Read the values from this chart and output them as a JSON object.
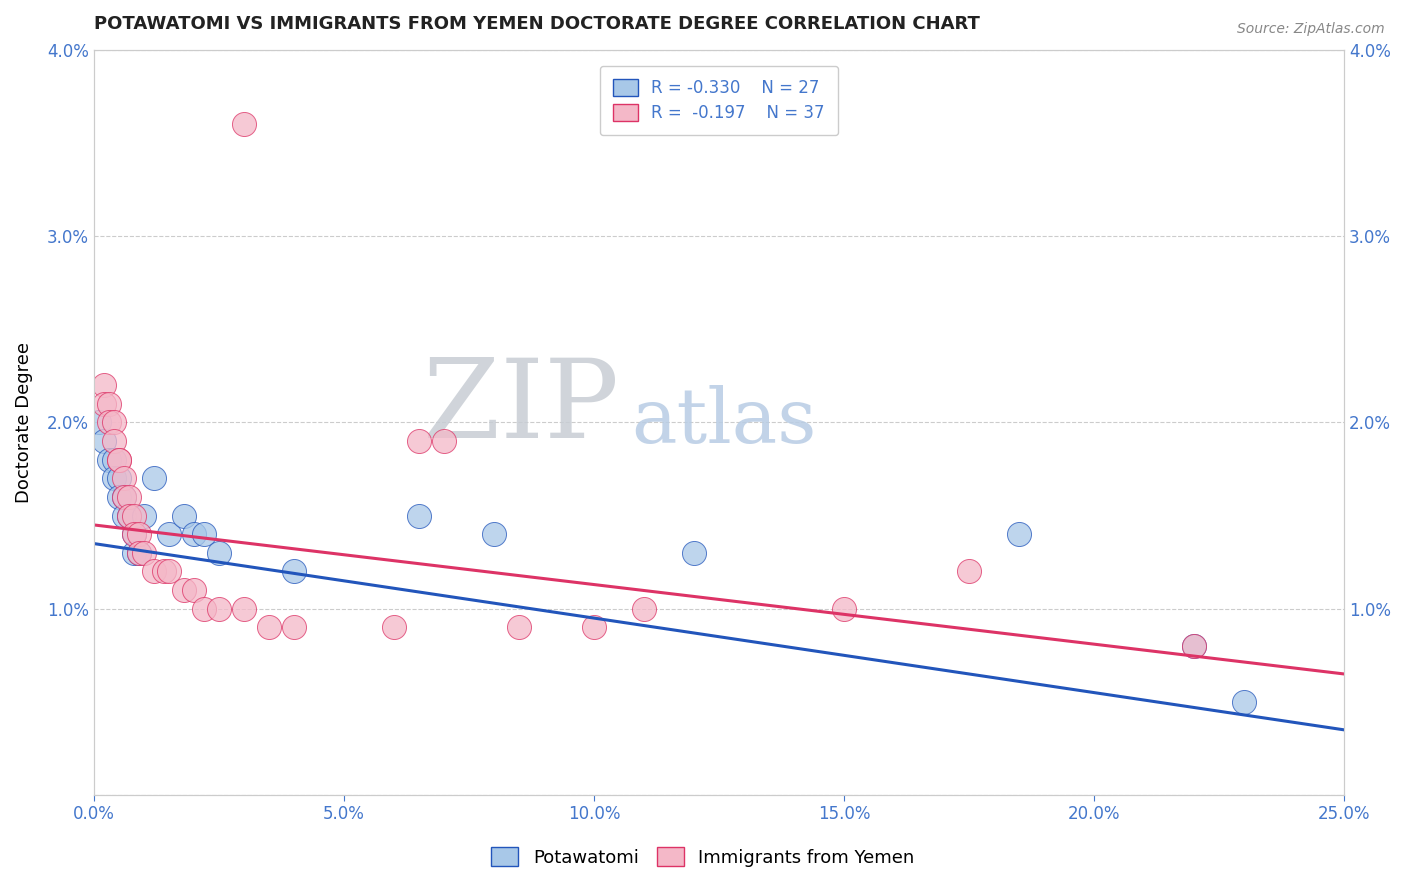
{
  "title": "POTAWATOMI VS IMMIGRANTS FROM YEMEN DOCTORATE DEGREE CORRELATION CHART",
  "source_text": "Source: ZipAtlas.com",
  "xlabel": "",
  "ylabel": "Doctorate Degree",
  "xlim": [
    0.0,
    0.25
  ],
  "ylim": [
    0.0,
    0.04
  ],
  "xticks": [
    0.0,
    0.05,
    0.1,
    0.15,
    0.2,
    0.25
  ],
  "xtick_labels": [
    "0.0%",
    "5.0%",
    "10.0%",
    "15.0%",
    "20.0%",
    "25.0%"
  ],
  "yticks": [
    0.0,
    0.01,
    0.02,
    0.03,
    0.04
  ],
  "ytick_labels": [
    "",
    "1.0%",
    "2.0%",
    "3.0%",
    "4.0%"
  ],
  "blue_R": -0.33,
  "blue_N": 27,
  "pink_R": -0.197,
  "pink_N": 37,
  "legend_label_blue": "Potawatomi",
  "legend_label_pink": "Immigrants from Yemen",
  "blue_color": "#a8c8e8",
  "pink_color": "#f4b8c8",
  "blue_line_color": "#2255bb",
  "pink_line_color": "#dd3366",
  "title_color": "#222222",
  "axis_color": "#4477cc",
  "blue_trend_start": 0.0135,
  "blue_trend_end": 0.0035,
  "pink_trend_start": 0.0145,
  "pink_trend_end": 0.0065,
  "blue_scatter": [
    [
      0.001,
      0.02
    ],
    [
      0.002,
      0.019
    ],
    [
      0.003,
      0.018
    ],
    [
      0.004,
      0.018
    ],
    [
      0.004,
      0.017
    ],
    [
      0.005,
      0.017
    ],
    [
      0.005,
      0.016
    ],
    [
      0.006,
      0.016
    ],
    [
      0.006,
      0.015
    ],
    [
      0.007,
      0.015
    ],
    [
      0.008,
      0.014
    ],
    [
      0.008,
      0.013
    ],
    [
      0.009,
      0.013
    ],
    [
      0.01,
      0.015
    ],
    [
      0.012,
      0.017
    ],
    [
      0.015,
      0.014
    ],
    [
      0.018,
      0.015
    ],
    [
      0.02,
      0.014
    ],
    [
      0.022,
      0.014
    ],
    [
      0.025,
      0.013
    ],
    [
      0.04,
      0.012
    ],
    [
      0.065,
      0.015
    ],
    [
      0.08,
      0.014
    ],
    [
      0.12,
      0.013
    ],
    [
      0.185,
      0.014
    ],
    [
      0.22,
      0.008
    ],
    [
      0.23,
      0.005
    ]
  ],
  "pink_scatter": [
    [
      0.002,
      0.022
    ],
    [
      0.002,
      0.021
    ],
    [
      0.003,
      0.021
    ],
    [
      0.003,
      0.02
    ],
    [
      0.004,
      0.02
    ],
    [
      0.004,
      0.019
    ],
    [
      0.005,
      0.018
    ],
    [
      0.005,
      0.018
    ],
    [
      0.006,
      0.017
    ],
    [
      0.006,
      0.016
    ],
    [
      0.007,
      0.016
    ],
    [
      0.007,
      0.015
    ],
    [
      0.008,
      0.015
    ],
    [
      0.008,
      0.014
    ],
    [
      0.009,
      0.014
    ],
    [
      0.009,
      0.013
    ],
    [
      0.01,
      0.013
    ],
    [
      0.012,
      0.012
    ],
    [
      0.014,
      0.012
    ],
    [
      0.015,
      0.012
    ],
    [
      0.018,
      0.011
    ],
    [
      0.02,
      0.011
    ],
    [
      0.022,
      0.01
    ],
    [
      0.025,
      0.01
    ],
    [
      0.03,
      0.01
    ],
    [
      0.035,
      0.009
    ],
    [
      0.04,
      0.009
    ],
    [
      0.06,
      0.009
    ],
    [
      0.07,
      0.019
    ],
    [
      0.085,
      0.009
    ],
    [
      0.1,
      0.009
    ],
    [
      0.11,
      0.01
    ],
    [
      0.15,
      0.01
    ],
    [
      0.175,
      0.012
    ],
    [
      0.22,
      0.008
    ],
    [
      0.03,
      0.036
    ],
    [
      0.065,
      0.019
    ]
  ]
}
